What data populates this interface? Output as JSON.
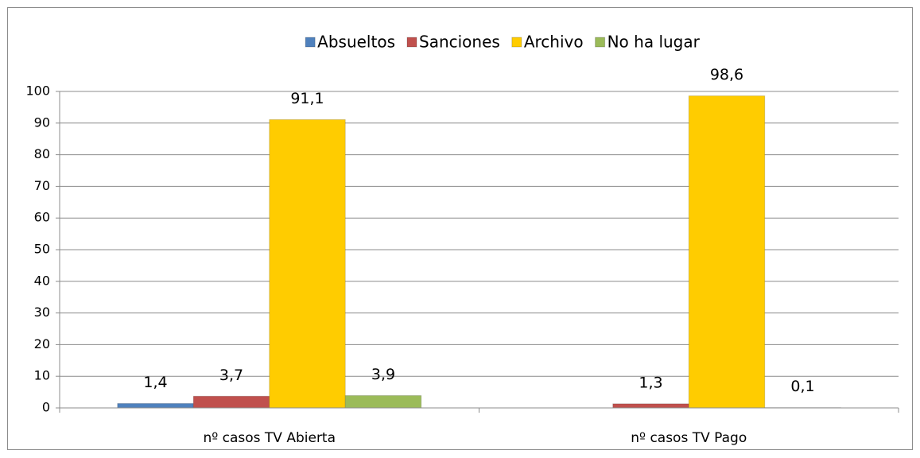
{
  "chart_data": {
    "type": "bar",
    "categories": [
      "nº casos TV Abierta",
      "nº casos TV Pago"
    ],
    "series": [
      {
        "name": "Absueltos",
        "color": "#4f81bd",
        "values": [
          1.4,
          null
        ],
        "value_labels": [
          "1,4",
          null
        ]
      },
      {
        "name": "Sanciones",
        "color": "#c0504d",
        "values": [
          3.7,
          1.3
        ],
        "value_labels": [
          "3,7",
          "1,3"
        ]
      },
      {
        "name": "Archivo",
        "color": "#ffcc00",
        "values": [
          91.1,
          98.6
        ],
        "value_labels": [
          "91,1",
          "98,6"
        ]
      },
      {
        "name": "No ha lugar",
        "color": "#9bbb59",
        "values": [
          3.9,
          0.1
        ],
        "value_labels": [
          "3,9",
          "0,1"
        ]
      }
    ],
    "ylim": [
      0,
      100
    ],
    "yticks": [
      0,
      10,
      20,
      30,
      40,
      50,
      60,
      70,
      80,
      90,
      100
    ],
    "grid": true,
    "legend": "top"
  }
}
